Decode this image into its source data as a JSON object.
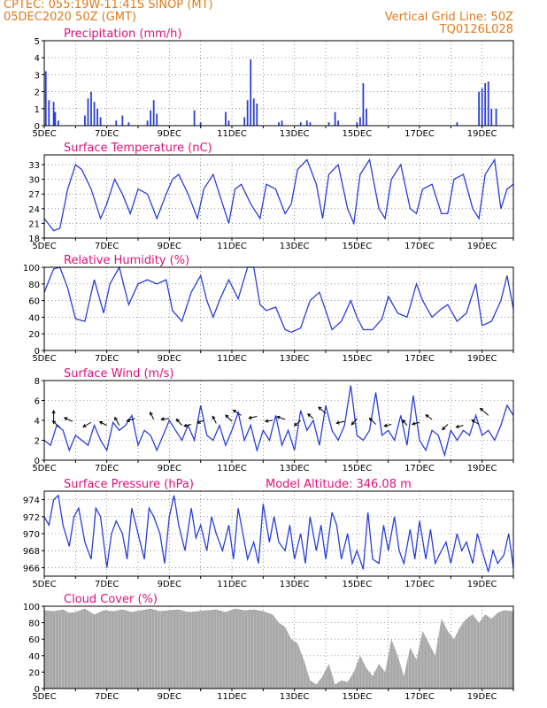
{
  "header": {
    "line1": "CPTEC:    055:19W-11:41S   SINOP  (MT)",
    "line2": "05DEC2020  50Z  (GMT)",
    "right1": "Vertical  Grid  Line:  50Z",
    "right2": "TQ0126L028"
  },
  "colors": {
    "header": "#e07b1a",
    "title": "#e0107a",
    "line": "#2a3fd8",
    "cloud": "#a9a9a9"
  },
  "x_ticks": [
    "5DEC",
    "7DEC",
    "9DEC",
    "11DEC",
    "13DEC",
    "15DEC",
    "17DEC",
    "19DEC"
  ],
  "chart_data": [
    {
      "type": "bar",
      "title": "Precipitation  (mm/h)",
      "ylim": [
        0,
        5
      ],
      "yticks": [
        "0",
        "1",
        "2",
        "3",
        "4",
        "5"
      ],
      "x_start_day": 5,
      "x_end_day": 20,
      "bars": [
        [
          5.05,
          3.2
        ],
        [
          5.15,
          1.5
        ],
        [
          5.3,
          1.4
        ],
        [
          5.35,
          0.8
        ],
        [
          5.45,
          0.3
        ],
        [
          6.3,
          0.6
        ],
        [
          6.4,
          1.6
        ],
        [
          6.5,
          2.0
        ],
        [
          6.6,
          1.4
        ],
        [
          6.7,
          1.0
        ],
        [
          6.8,
          0.5
        ],
        [
          7.3,
          0.3
        ],
        [
          7.5,
          0.6
        ],
        [
          7.7,
          0.2
        ],
        [
          8.3,
          0.3
        ],
        [
          8.4,
          0.9
        ],
        [
          8.5,
          1.5
        ],
        [
          8.6,
          0.7
        ],
        [
          9.8,
          0.9
        ],
        [
          10.0,
          0.2
        ],
        [
          10.8,
          0.8
        ],
        [
          10.9,
          0.3
        ],
        [
          11.4,
          0.5
        ],
        [
          11.5,
          1.5
        ],
        [
          11.6,
          3.9
        ],
        [
          11.7,
          1.6
        ],
        [
          11.8,
          1.3
        ],
        [
          12.5,
          0.2
        ],
        [
          12.6,
          0.3
        ],
        [
          13.2,
          0.2
        ],
        [
          13.4,
          0.3
        ],
        [
          13.5,
          0.2
        ],
        [
          14.1,
          0.2
        ],
        [
          14.3,
          0.8
        ],
        [
          14.4,
          0.3
        ],
        [
          15.0,
          0.2
        ],
        [
          15.1,
          0.5
        ],
        [
          15.2,
          2.5
        ],
        [
          15.3,
          1.0
        ],
        [
          18.2,
          0.2
        ],
        [
          18.9,
          2.0
        ],
        [
          19.0,
          2.2
        ],
        [
          19.1,
          2.5
        ],
        [
          19.2,
          2.6
        ],
        [
          19.3,
          1.0
        ],
        [
          19.45,
          1.0
        ]
      ]
    },
    {
      "type": "line",
      "title": "Surface  Temperature  (nC)",
      "ylim": [
        18,
        35
      ],
      "yticks": [
        "18",
        "21",
        "24",
        "27",
        "30",
        "33"
      ],
      "x_start_day": 5,
      "x_end_day": 20,
      "x": [
        5.0,
        5.3,
        5.5,
        5.75,
        6.0,
        6.2,
        6.5,
        6.8,
        7.0,
        7.25,
        7.5,
        7.75,
        8.0,
        8.3,
        8.6,
        8.9,
        9.1,
        9.3,
        9.6,
        9.9,
        10.1,
        10.4,
        10.7,
        10.9,
        11.1,
        11.3,
        11.6,
        11.9,
        12.1,
        12.4,
        12.7,
        12.9,
        13.1,
        13.4,
        13.7,
        13.9,
        14.1,
        14.4,
        14.7,
        14.9,
        15.1,
        15.4,
        15.7,
        15.9,
        16.1,
        16.4,
        16.7,
        16.9,
        17.1,
        17.4,
        17.7,
        17.9,
        18.1,
        18.4,
        18.7,
        18.9,
        19.1,
        19.4,
        19.6,
        19.8,
        20.0
      ],
      "y": [
        22,
        19.5,
        20,
        28,
        33,
        32,
        28,
        22,
        25,
        30,
        27,
        23,
        28,
        27,
        22,
        27,
        30,
        31,
        27,
        22,
        28,
        31,
        25,
        21,
        28,
        29,
        25,
        22,
        29,
        28,
        23,
        25,
        32,
        34,
        29,
        22,
        31,
        33,
        24,
        21,
        31,
        34,
        24,
        22,
        30,
        33,
        24,
        23,
        28,
        29,
        23,
        23,
        30,
        31,
        24,
        22,
        31,
        34,
        24,
        28,
        29
      ]
    },
    {
      "type": "line",
      "title": "Relative  Humidity  (%)",
      "ylim": [
        0,
        100
      ],
      "yticks": [
        "0",
        "20",
        "40",
        "60",
        "80",
        "100"
      ],
      "x_start_day": 5,
      "x_end_day": 20,
      "x": [
        5.0,
        5.3,
        5.5,
        5.75,
        6.0,
        6.3,
        6.6,
        6.9,
        7.1,
        7.4,
        7.7,
        8.0,
        8.3,
        8.6,
        8.9,
        9.1,
        9.4,
        9.7,
        10.0,
        10.2,
        10.4,
        10.6,
        10.9,
        11.2,
        11.5,
        11.7,
        11.9,
        12.1,
        12.4,
        12.7,
        12.9,
        13.2,
        13.5,
        13.8,
        14.0,
        14.2,
        14.5,
        14.8,
        15.0,
        15.2,
        15.5,
        15.8,
        16.0,
        16.3,
        16.6,
        16.9,
        17.1,
        17.4,
        17.7,
        17.9,
        18.2,
        18.5,
        18.8,
        19.0,
        19.3,
        19.6,
        19.8,
        20.0
      ],
      "y": [
        70,
        98,
        100,
        75,
        38,
        35,
        85,
        45,
        80,
        100,
        55,
        80,
        85,
        80,
        85,
        48,
        35,
        70,
        90,
        60,
        40,
        60,
        85,
        62,
        100,
        100,
        55,
        48,
        52,
        25,
        22,
        27,
        60,
        70,
        48,
        25,
        35,
        60,
        40,
        25,
        25,
        38,
        65,
        45,
        40,
        80,
        60,
        40,
        50,
        55,
        35,
        45,
        80,
        30,
        35,
        60,
        90,
        50
      ]
    },
    {
      "type": "line",
      "title": "Surface  Wind  (m/s)",
      "ylim": [
        0,
        8
      ],
      "yticks": [
        "0",
        "2",
        "4",
        "6",
        "8"
      ],
      "x_start_day": 5,
      "x_end_day": 20,
      "x": [
        5.0,
        5.2,
        5.4,
        5.6,
        5.8,
        6.0,
        6.2,
        6.4,
        6.6,
        6.8,
        7.0,
        7.2,
        7.4,
        7.6,
        7.8,
        8.0,
        8.2,
        8.4,
        8.6,
        8.8,
        9.0,
        9.2,
        9.4,
        9.6,
        9.8,
        10.0,
        10.2,
        10.4,
        10.6,
        10.8,
        11.0,
        11.2,
        11.4,
        11.6,
        11.8,
        12.0,
        12.2,
        12.4,
        12.6,
        12.8,
        13.0,
        13.2,
        13.4,
        13.6,
        13.8,
        14.0,
        14.2,
        14.4,
        14.6,
        14.8,
        15.0,
        15.2,
        15.4,
        15.6,
        15.8,
        16.0,
        16.2,
        16.4,
        16.6,
        16.8,
        17.0,
        17.2,
        17.4,
        17.6,
        17.8,
        18.0,
        18.2,
        18.4,
        18.6,
        18.8,
        19.0,
        19.2,
        19.4,
        19.6,
        19.8,
        20.0
      ],
      "y": [
        2.0,
        1.5,
        3.5,
        3.0,
        1.0,
        2.5,
        2.0,
        1.5,
        3.5,
        2.0,
        1.0,
        3.8,
        3.0,
        3.5,
        4.5,
        1.5,
        3.0,
        2.5,
        1.0,
        2.5,
        4.0,
        3.0,
        2.0,
        3.5,
        2.0,
        5.5,
        2.5,
        2.0,
        3.5,
        1.5,
        3.0,
        4.8,
        2.0,
        3.5,
        1.0,
        3.0,
        2.0,
        4.5,
        1.5,
        3.0,
        1.0,
        5.0,
        3.0,
        4.0,
        1.5,
        5.5,
        3.0,
        2.0,
        3.5,
        7.5,
        2.5,
        2.0,
        3.0,
        6.8,
        2.5,
        3.0,
        2.0,
        4.5,
        1.5,
        6.5,
        2.0,
        1.0,
        3.0,
        2.5,
        0.5,
        3.0,
        2.0,
        3.0,
        2.5,
        4.5,
        2.5,
        3.0,
        2.0,
        3.5,
        5.5,
        4.5
      ],
      "vectors": [
        [
          5.3,
          3.9,
          0,
          12
        ],
        [
          5.5,
          3.3,
          -8,
          7
        ],
        [
          5.9,
          3.9,
          -9,
          4
        ],
        [
          6.5,
          3.8,
          -9,
          -5
        ],
        [
          7.0,
          3.5,
          -8,
          4
        ],
        [
          7.4,
          3.5,
          -5,
          9
        ],
        [
          7.9,
          4.2,
          -9,
          -3
        ],
        [
          8.5,
          4.1,
          -4,
          8
        ],
        [
          9.0,
          4.2,
          -9,
          -1
        ],
        [
          9.4,
          3.5,
          -6,
          7
        ],
        [
          9.7,
          3.6,
          -8,
          -2
        ],
        [
          10.1,
          4.0,
          -7,
          -3
        ],
        [
          10.5,
          3.7,
          -4,
          8
        ],
        [
          11.0,
          3.9,
          -7,
          7
        ],
        [
          11.3,
          4.5,
          -9,
          6
        ],
        [
          11.8,
          4.4,
          -9,
          -2
        ],
        [
          12.3,
          4.0,
          -8,
          -1
        ],
        [
          12.7,
          4.1,
          -9,
          3
        ],
        [
          13.2,
          4.0,
          -7,
          -6
        ],
        [
          13.6,
          4.2,
          -6,
          5
        ],
        [
          14.0,
          4.7,
          -8,
          7
        ],
        [
          14.6,
          3.9,
          -9,
          -2
        ],
        [
          15.0,
          4.2,
          -6,
          -7
        ],
        [
          15.6,
          3.6,
          -7,
          7
        ],
        [
          16.1,
          3.6,
          -8,
          -2
        ],
        [
          16.6,
          3.5,
          -5,
          6
        ],
        [
          17.0,
          3.8,
          -8,
          -2
        ],
        [
          17.4,
          4.1,
          -7,
          5
        ],
        [
          17.9,
          3.6,
          -6,
          -6
        ],
        [
          18.4,
          3.5,
          -8,
          -2
        ],
        [
          18.9,
          3.6,
          -8,
          5
        ],
        [
          19.2,
          4.5,
          -9,
          8
        ]
      ]
    },
    {
      "type": "line",
      "title": "Surface  Pressure  (hPa)",
      "annotation": "Model  Altitude:  346.08  m",
      "ylim": [
        965,
        975
      ],
      "yticks": [
        "966",
        "968",
        "970",
        "972",
        "974"
      ],
      "x_start_day": 5,
      "x_end_day": 20,
      "x": [
        5.0,
        5.15,
        5.3,
        5.45,
        5.6,
        5.8,
        5.95,
        6.1,
        6.3,
        6.5,
        6.65,
        6.8,
        7.0,
        7.15,
        7.3,
        7.5,
        7.65,
        7.8,
        8.0,
        8.2,
        8.35,
        8.5,
        8.7,
        8.85,
        9.0,
        9.15,
        9.3,
        9.5,
        9.7,
        9.85,
        10.0,
        10.2,
        10.35,
        10.5,
        10.7,
        10.9,
        11.05,
        11.2,
        11.35,
        11.5,
        11.7,
        11.85,
        12.0,
        12.2,
        12.35,
        12.5,
        12.7,
        12.85,
        13.0,
        13.2,
        13.35,
        13.5,
        13.7,
        13.85,
        14.0,
        14.2,
        14.35,
        14.5,
        14.7,
        14.85,
        15.0,
        15.2,
        15.35,
        15.5,
        15.7,
        15.85,
        16.0,
        16.2,
        16.35,
        16.5,
        16.7,
        16.85,
        17.0,
        17.2,
        17.35,
        17.5,
        17.7,
        17.85,
        18.0,
        18.2,
        18.35,
        18.5,
        18.7,
        18.85,
        19.0,
        19.2,
        19.35,
        19.5,
        19.7,
        19.85,
        20.0
      ],
      "y": [
        972,
        971,
        974,
        974.5,
        971,
        968.5,
        972,
        973,
        969,
        967,
        973,
        972,
        966,
        970,
        971.5,
        970,
        967,
        973,
        970,
        967,
        973,
        972,
        970,
        966.5,
        972,
        974.5,
        971,
        968,
        973,
        969.5,
        971,
        968,
        972,
        970,
        968,
        971,
        967,
        973,
        970,
        967,
        969,
        966.5,
        973.5,
        969,
        972,
        969,
        968,
        971,
        967,
        970,
        966.5,
        972,
        968,
        971,
        967,
        972.5,
        971,
        967,
        970,
        966.5,
        968,
        965.8,
        972.5,
        967,
        966.5,
        971,
        968,
        972,
        968,
        966.5,
        970.5,
        967,
        971.5,
        967,
        970.5,
        966.5,
        968,
        969,
        966.5,
        970,
        968,
        969,
        966.5,
        970,
        968,
        965.5,
        968,
        966.5,
        967.5,
        970,
        966
      ]
    },
    {
      "type": "area",
      "title": "Cloud  Cover  (%)",
      "ylim": [
        0,
        100
      ],
      "yticks": [
        "0",
        "20",
        "40",
        "60",
        "80",
        "100"
      ],
      "x_start_day": 5,
      "x_end_day": 20,
      "x": [
        5.0,
        5.3,
        5.6,
        5.8,
        6.0,
        6.3,
        6.6,
        6.9,
        7.2,
        7.5,
        7.8,
        8.1,
        8.4,
        8.7,
        9.0,
        9.3,
        9.6,
        9.9,
        10.2,
        10.5,
        10.8,
        11.1,
        11.4,
        11.7,
        12.0,
        12.3,
        12.5,
        12.7,
        12.9,
        13.1,
        13.3,
        13.5,
        13.7,
        13.9,
        14.1,
        14.3,
        14.5,
        14.7,
        14.9,
        15.1,
        15.3,
        15.5,
        15.7,
        15.9,
        16.1,
        16.3,
        16.5,
        16.7,
        16.9,
        17.1,
        17.3,
        17.5,
        17.7,
        17.9,
        18.1,
        18.3,
        18.5,
        18.7,
        18.9,
        19.1,
        19.3,
        19.5,
        19.7,
        20.0
      ],
      "y": [
        95,
        94,
        96,
        92,
        93,
        97,
        90,
        95,
        94,
        96,
        93,
        95,
        97,
        94,
        95,
        96,
        93,
        94,
        95,
        96,
        93,
        97,
        95,
        96,
        94,
        90,
        80,
        75,
        60,
        55,
        35,
        10,
        5,
        15,
        30,
        5,
        10,
        8,
        20,
        40,
        25,
        15,
        30,
        20,
        60,
        40,
        15,
        50,
        35,
        70,
        55,
        40,
        85,
        70,
        60,
        75,
        85,
        90,
        80,
        90,
        85,
        92,
        95,
        94
      ]
    }
  ]
}
